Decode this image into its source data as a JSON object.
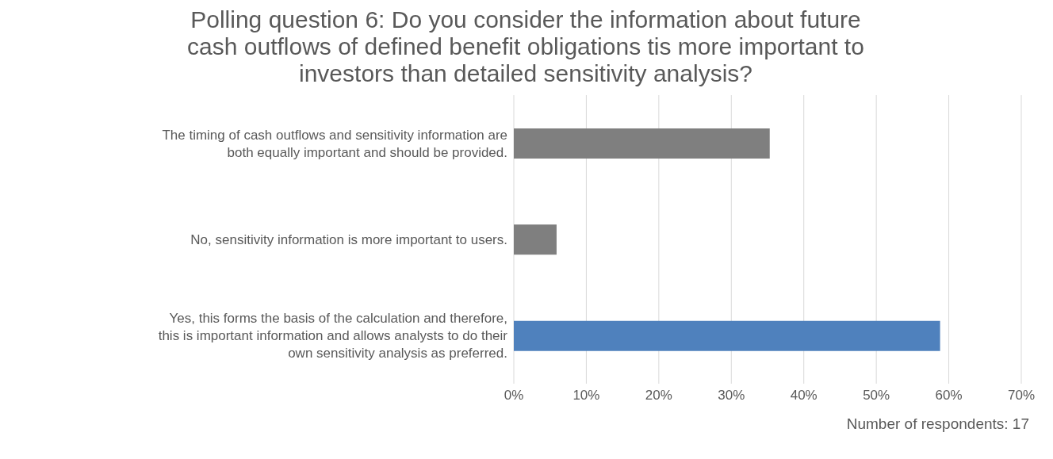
{
  "chart_data": {
    "type": "bar",
    "orientation": "horizontal",
    "title": "Polling question 6: Do you consider the information about future cash outflows of defined benefit obligations tis more important to investors than detailed sensitivity analysis?",
    "categories": [
      "The timing of cash outflows and sensitivity information are both equally important and should be provided.",
      "No, sensitivity information is more important to users.",
      "Yes, this forms the basis of the calculation and therefore, this is important information and allows analysts to do their own sensitivity analysis as preferred."
    ],
    "values": [
      35.3,
      5.9,
      58.8
    ],
    "colors": [
      "#7f7f7f",
      "#7f7f7f",
      "#4f81bd"
    ],
    "xlim": [
      0,
      70
    ],
    "xticks": [
      {
        "value": 0,
        "label": "0%"
      },
      {
        "value": 10,
        "label": "10%"
      },
      {
        "value": 20,
        "label": "20%"
      },
      {
        "value": 30,
        "label": "30%"
      },
      {
        "value": 40,
        "label": "40%"
      },
      {
        "value": 50,
        "label": "50%"
      },
      {
        "value": 60,
        "label": "60%"
      },
      {
        "value": 70,
        "label": "70%"
      }
    ],
    "grid": "x",
    "annotations": [
      "Number of respondents: 17"
    ]
  }
}
